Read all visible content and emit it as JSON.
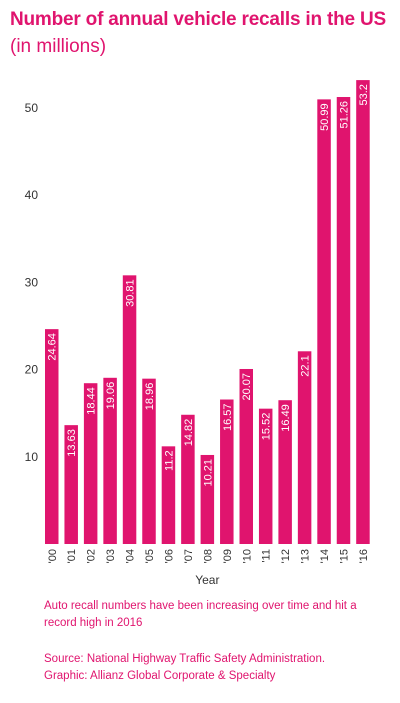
{
  "header": {
    "title": "Number of annual vehicle recalls in the US",
    "subtitle": "(in millions)"
  },
  "footer": {
    "note": "Auto recall numbers have been increasing over time and hit a record high in 2016",
    "source": "Source: National Highway Traffic Safety Administration.",
    "graphic": "Graphic: Allianz Global Corporate & Specialty"
  },
  "colors": {
    "accent": "#e0146e",
    "axis_text": "#333333"
  },
  "chart_data": {
    "type": "bar",
    "title": "Number of annual vehicle recalls in the US",
    "subtitle": "(in millions)",
    "xlabel": "Year",
    "ylabel": "",
    "categories": [
      "'00",
      "'01",
      "'02",
      "'03",
      "'04",
      "'05",
      "'06",
      "'07",
      "'08",
      "'09",
      "'10",
      "'11",
      "'12",
      "'13",
      "'14",
      "'15",
      "'16"
    ],
    "values": [
      24.64,
      13.63,
      18.44,
      19.06,
      30.81,
      18.96,
      11.2,
      14.82,
      10.21,
      16.57,
      20.07,
      15.52,
      16.49,
      22.1,
      50.99,
      51.26,
      53.2
    ],
    "value_labels": [
      "24.64",
      "13.63",
      "18.44",
      "19.06",
      "30.81",
      "18.96",
      "11.2",
      "14.82",
      "10.21",
      "16.57",
      "20.07",
      "15.52",
      "16.49",
      "22.1",
      "50.99",
      "51.26",
      "53.2"
    ],
    "yticks": [
      10,
      20,
      30,
      40,
      50
    ],
    "ylim": [
      0,
      55
    ],
    "grid": false,
    "legend": "none"
  }
}
